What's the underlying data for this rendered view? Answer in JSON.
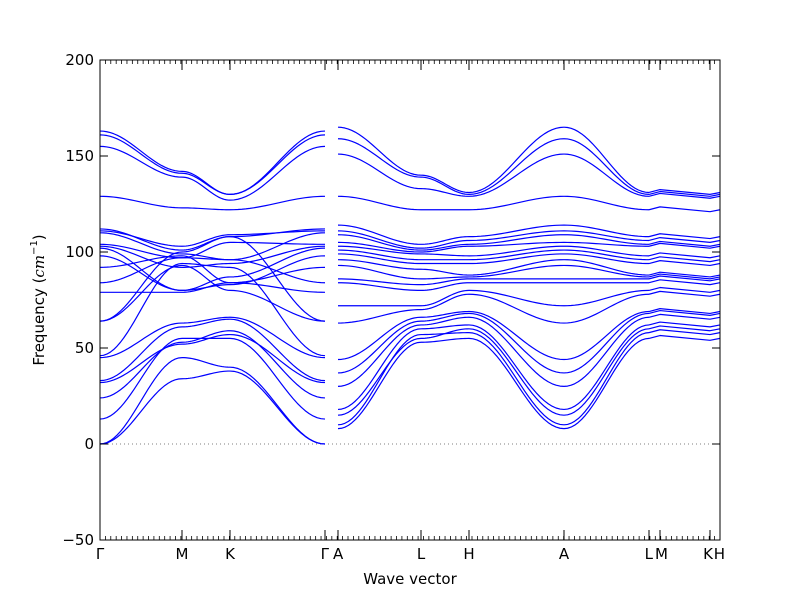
{
  "chart_data": {
    "type": "line",
    "title": "",
    "xlabel": "Wave vector",
    "ylabel_text": "Frequency (",
    "ylabel_unit_math": "cm",
    "ylabel_unit_exp": "−1",
    "ylabel_close": ")",
    "ylim": [
      -50,
      200
    ],
    "yticks": [
      {
        "value": -50,
        "label": "−50"
      },
      {
        "value": 0,
        "label": "0"
      },
      {
        "value": 50,
        "label": "50"
      },
      {
        "value": 100,
        "label": "100"
      },
      {
        "value": 150,
        "label": "150"
      },
      {
        "value": 200,
        "label": "200"
      }
    ],
    "xlim": [
      0,
      6.44
    ],
    "high_symmetry_points": [
      {
        "label": "Γ",
        "x": 0
      },
      {
        "label": "M",
        "x": 1.1
      },
      {
        "label": "K",
        "x": 1.74
      },
      {
        "label": "Γ",
        "x": 3.11
      },
      {
        "label": "A",
        "x": 3.21
      },
      {
        "label": "L",
        "x": 4.31
      },
      {
        "label": "H",
        "x": 4.94
      },
      {
        "label": "A",
        "x": 6.2
      },
      {
        "label": "L",
        "x": 7.3
      },
      {
        "label": "M",
        "x": 7.4
      },
      {
        "label": "K",
        "x": 8.04
      },
      {
        "label": "H",
        "x": 8.14
      }
    ],
    "zero_line": true,
    "grid": false,
    "line_color": "#0000ff",
    "zero_line_color": "#555555",
    "segments": [
      {
        "x0": 0,
        "x1": 1.1,
        "series": [
          [
            0,
            34
          ],
          [
            0,
            45
          ],
          [
            13,
            55
          ],
          [
            24,
            53
          ],
          [
            32,
            52
          ],
          [
            33,
            61
          ],
          [
            45,
            63
          ],
          [
            46,
            94
          ],
          [
            64,
            93
          ],
          [
            64,
            100
          ],
          [
            79,
            79
          ],
          [
            84,
            97
          ],
          [
            92,
            98
          ],
          [
            98,
            80
          ],
          [
            102,
            80
          ],
          [
            103,
            92
          ],
          [
            104,
            97
          ],
          [
            110,
            99
          ],
          [
            111,
            103
          ],
          [
            112,
            101
          ],
          [
            129,
            123
          ],
          [
            155,
            139
          ],
          [
            161,
            141
          ],
          [
            163,
            142
          ]
        ]
      },
      {
        "x0": 1.1,
        "x1": 1.74,
        "series": [
          [
            34,
            38
          ],
          [
            45,
            40
          ],
          [
            55,
            55
          ],
          [
            53,
            59
          ],
          [
            52,
            57
          ],
          [
            61,
            65
          ],
          [
            63,
            66
          ],
          [
            94,
            92
          ],
          [
            93,
            80
          ],
          [
            100,
            108
          ],
          [
            79,
            84
          ],
          [
            97,
            96
          ],
          [
            98,
            84
          ],
          [
            80,
            83
          ],
          [
            80,
            87
          ],
          [
            92,
            94
          ],
          [
            97,
            105
          ],
          [
            99,
            96
          ],
          [
            103,
            109
          ],
          [
            101,
            108
          ],
          [
            123,
            122
          ],
          [
            139,
            127
          ],
          [
            141,
            130
          ],
          [
            142,
            130
          ]
        ]
      },
      {
        "x0": 1.74,
        "x1": 3.11,
        "series": [
          [
            38,
            0
          ],
          [
            40,
            0
          ],
          [
            55,
            13
          ],
          [
            59,
            24
          ],
          [
            57,
            32
          ],
          [
            65,
            33
          ],
          [
            66,
            45
          ],
          [
            92,
            46
          ],
          [
            80,
            64
          ],
          [
            108,
            64
          ],
          [
            84,
            79
          ],
          [
            96,
            84
          ],
          [
            84,
            92
          ],
          [
            83,
            98
          ],
          [
            87,
            102
          ],
          [
            94,
            103
          ],
          [
            105,
            104
          ],
          [
            96,
            110
          ],
          [
            109,
            111
          ],
          [
            108,
            112
          ],
          [
            122,
            129
          ],
          [
            127,
            155
          ],
          [
            130,
            161
          ],
          [
            130,
            163
          ]
        ]
      },
      {
        "x0": 3.21,
        "x1": 4.31,
        "series": [
          [
            8,
            53
          ],
          [
            10,
            57
          ],
          [
            15,
            55
          ],
          [
            18,
            60
          ],
          [
            30,
            62
          ],
          [
            37,
            64
          ],
          [
            44,
            66
          ],
          [
            63,
            70
          ],
          [
            72,
            72
          ],
          [
            84,
            80
          ],
          [
            86,
            83
          ],
          [
            93,
            86
          ],
          [
            96,
            91
          ],
          [
            99,
            94
          ],
          [
            101,
            96
          ],
          [
            103,
            99
          ],
          [
            105,
            100
          ],
          [
            109,
            101
          ],
          [
            111,
            102
          ],
          [
            114,
            104
          ],
          [
            129,
            122
          ],
          [
            151,
            133
          ],
          [
            159,
            139
          ],
          [
            165,
            140
          ]
        ]
      },
      {
        "x0": 4.31,
        "x1": 4.94,
        "series": [
          [
            53,
            55
          ],
          [
            57,
            58
          ],
          [
            55,
            60
          ],
          [
            60,
            62
          ],
          [
            62,
            66
          ],
          [
            64,
            68
          ],
          [
            66,
            69
          ],
          [
            70,
            78
          ],
          [
            72,
            80
          ],
          [
            80,
            84
          ],
          [
            83,
            86
          ],
          [
            86,
            87
          ],
          [
            91,
            88
          ],
          [
            94,
            94
          ],
          [
            96,
            96
          ],
          [
            99,
            98
          ],
          [
            100,
            103
          ],
          [
            101,
            104
          ],
          [
            102,
            106
          ],
          [
            104,
            108
          ],
          [
            122,
            122
          ],
          [
            133,
            129
          ],
          [
            139,
            130
          ],
          [
            140,
            131
          ]
        ]
      },
      {
        "x0": 4.94,
        "x1": 6.2,
        "series": [
          [
            55,
            8
          ],
          [
            58,
            10
          ],
          [
            60,
            15
          ],
          [
            62,
            18
          ],
          [
            66,
            30
          ],
          [
            68,
            37
          ],
          [
            69,
            44
          ],
          [
            78,
            63
          ],
          [
            80,
            72
          ],
          [
            84,
            84
          ],
          [
            86,
            86
          ],
          [
            87,
            93
          ],
          [
            88,
            96
          ],
          [
            94,
            99
          ],
          [
            96,
            101
          ],
          [
            98,
            103
          ],
          [
            103,
            105
          ],
          [
            104,
            109
          ],
          [
            106,
            111
          ],
          [
            108,
            114
          ],
          [
            122,
            129
          ],
          [
            129,
            151
          ],
          [
            130,
            159
          ],
          [
            131,
            165
          ]
        ]
      },
      {
        "x0": 6.2,
        "x1": 6.44,
        "series": [
          [
            8,
            55
          ],
          [
            10,
            58
          ],
          [
            15,
            60
          ],
          [
            18,
            62
          ],
          [
            30,
            66
          ],
          [
            37,
            68
          ],
          [
            44,
            69
          ],
          [
            63,
            78
          ],
          [
            72,
            80
          ],
          [
            84,
            84
          ],
          [
            86,
            86
          ],
          [
            93,
            87
          ],
          [
            96,
            88
          ],
          [
            99,
            94
          ],
          [
            101,
            96
          ],
          [
            103,
            98
          ],
          [
            105,
            103
          ],
          [
            109,
            104
          ],
          [
            111,
            106
          ],
          [
            114,
            108
          ],
          [
            129,
            122
          ],
          [
            151,
            129
          ],
          [
            159,
            130
          ],
          [
            165,
            131
          ]
        ]
      }
    ]
  }
}
